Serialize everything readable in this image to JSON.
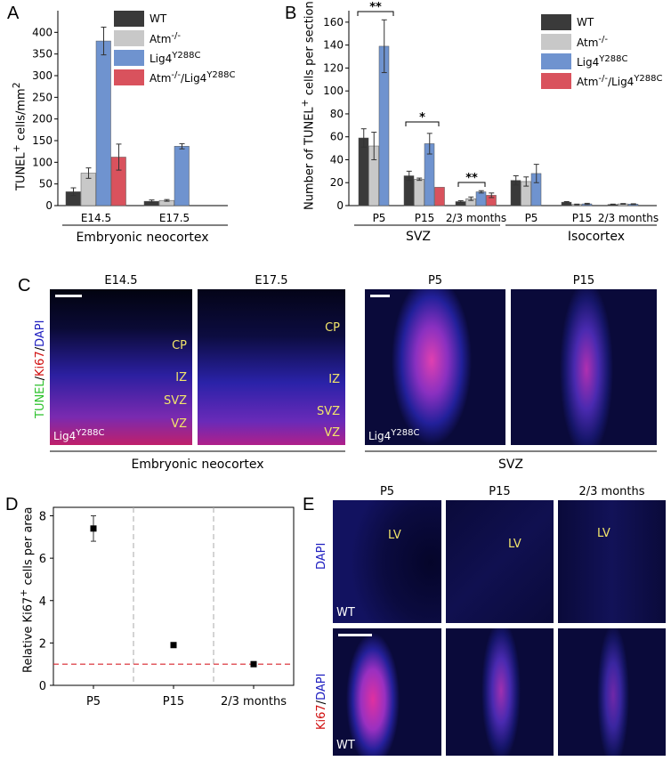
{
  "panels": {
    "A": "A",
    "B": "B",
    "C": "C",
    "D": "D",
    "E": "E"
  },
  "legend_labels": [
    "WT",
    "Atm-/-",
    "Lig4Y288C",
    "Atm-/-/Lig4Y288C"
  ],
  "colors": {
    "WT": "#3a3a3a",
    "Atm": "#c8c8c8",
    "Lig4": "#6f93cf",
    "AtmLig4": "#d9525d",
    "ref_line": "#d9252b"
  },
  "chart_data": [
    {
      "id": "A",
      "type": "bar",
      "ylabel": "TUNEL+ cells/mm2",
      "ylim": [
        0,
        450
      ],
      "yticks": [
        0,
        50,
        100,
        150,
        200,
        250,
        300,
        350,
        400
      ],
      "categories": [
        "E14.5",
        "E17.5"
      ],
      "group_label": "Embryonic neocortex",
      "series": [
        {
          "name": "WT",
          "values": [
            32,
            10
          ],
          "err": [
            9,
            3
          ]
        },
        {
          "name": "Atm-/-",
          "values": [
            75,
            12
          ],
          "err": [
            12,
            2
          ]
        },
        {
          "name": "Lig4Y288C",
          "values": [
            380,
            137
          ],
          "err": [
            32,
            6
          ]
        },
        {
          "name": "Atm-/-/Lig4Y288C",
          "values": [
            112,
            null
          ],
          "err": [
            30,
            null
          ]
        }
      ]
    },
    {
      "id": "B",
      "type": "bar",
      "ylabel": "Number of TUNEL+ cells per section",
      "ylim": [
        0,
        170
      ],
      "yticks": [
        0,
        20,
        40,
        60,
        80,
        100,
        120,
        140,
        160
      ],
      "categories": [
        "P5",
        "P15",
        "2/3 months",
        "P5",
        "P15",
        "2/3 months"
      ],
      "groups": [
        {
          "label": "SVZ",
          "span": [
            0,
            2
          ]
        },
        {
          "label": "Isocortex",
          "span": [
            3,
            5
          ]
        }
      ],
      "series": [
        {
          "name": "WT",
          "values": [
            59,
            26,
            3.5,
            22,
            3,
            1
          ],
          "err": [
            8,
            4,
            0.8,
            4,
            0.5,
            0.3
          ]
        },
        {
          "name": "Atm-/-",
          "values": [
            52,
            23,
            6,
            21,
            1,
            1.5
          ],
          "err": [
            12,
            1,
            1.5,
            4,
            0.3,
            0.3
          ]
        },
        {
          "name": "Lig4Y288C",
          "values": [
            139,
            54,
            12,
            28,
            1.5,
            1.3
          ],
          "err": [
            23,
            9,
            1,
            8,
            0.5,
            0.3
          ]
        },
        {
          "name": "Atm-/-/Lig4Y288C",
          "values": [
            null,
            16,
            9,
            null,
            null,
            null
          ],
          "err": [
            null,
            null,
            2,
            null,
            null,
            null
          ]
        }
      ],
      "significance": [
        {
          "category": 0,
          "text": "**"
        },
        {
          "category": 1,
          "text": "*"
        },
        {
          "category": 2,
          "text": "**"
        }
      ]
    },
    {
      "id": "D",
      "type": "scatter",
      "ylabel": "Relative Ki67+ cells per area",
      "ylim": [
        0,
        8.4
      ],
      "yticks": [
        0,
        2,
        4,
        6,
        8
      ],
      "categories": [
        "P5",
        "P15",
        "2/3 months"
      ],
      "values": [
        7.4,
        1.9,
        1.0
      ],
      "err": [
        0.6,
        0.1,
        0.05
      ],
      "ref_line": 1.0
    }
  ],
  "panel_C": {
    "left_headers": [
      "E14.5",
      "E17.5"
    ],
    "right_headers": [
      "P5",
      "P15"
    ],
    "layers": [
      "CP",
      "IZ",
      "SVZ",
      "VZ"
    ],
    "genotype": "Lig4Y288C",
    "left_caption": "Embryonic neocortex",
    "right_caption": "SVZ",
    "stain_label": {
      "tunel": "TUNEL",
      "ki67": "Ki67",
      "dapi": "DAPI"
    }
  },
  "panel_E": {
    "headers": [
      "P5",
      "P15",
      "2/3 months"
    ],
    "lv_label": "LV",
    "genotype": "WT",
    "row1_label": "DAPI",
    "row2_label": {
      "ki67": "Ki67",
      "dapi": "DAPI"
    }
  }
}
